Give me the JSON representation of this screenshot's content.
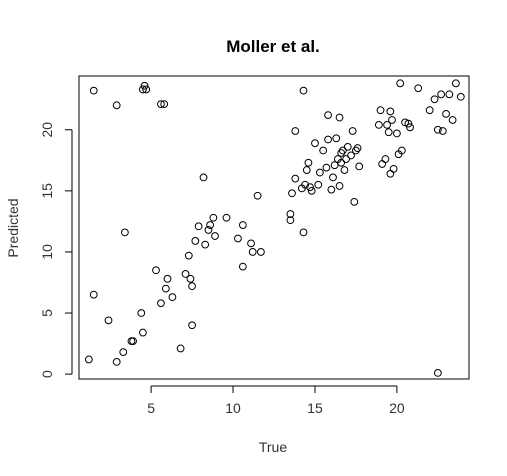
{
  "chart_data": {
    "type": "scatter",
    "title": "Moller et al.",
    "xlabel": "True",
    "ylabel": "Predicted",
    "xlim": [
      0.6,
      24.4
    ],
    "ylim": [
      -0.4,
      24.4
    ],
    "x_ticks": [
      5,
      10,
      15,
      20
    ],
    "y_ticks": [
      0,
      5,
      10,
      15,
      20
    ],
    "grid": false,
    "legend": "none",
    "marker": "open-circle",
    "colors": {
      "marker": "#000000",
      "axis": "#000000",
      "background": "#ffffff"
    },
    "points": [
      {
        "x": 1.2,
        "y": 1.2
      },
      {
        "x": 1.5,
        "y": 6.5
      },
      {
        "x": 1.5,
        "y": 23.2
      },
      {
        "x": 2.4,
        "y": 4.4
      },
      {
        "x": 2.9,
        "y": 1.0
      },
      {
        "x": 2.9,
        "y": 22.0
      },
      {
        "x": 3.3,
        "y": 1.8
      },
      {
        "x": 3.4,
        "y": 11.6
      },
      {
        "x": 3.8,
        "y": 2.7
      },
      {
        "x": 3.9,
        "y": 2.7
      },
      {
        "x": 4.4,
        "y": 5.0
      },
      {
        "x": 4.5,
        "y": 3.4
      },
      {
        "x": 4.5,
        "y": 23.3
      },
      {
        "x": 4.6,
        "y": 23.6
      },
      {
        "x": 4.7,
        "y": 23.3
      },
      {
        "x": 5.3,
        "y": 8.5
      },
      {
        "x": 5.6,
        "y": 5.8
      },
      {
        "x": 5.6,
        "y": 22.1
      },
      {
        "x": 5.8,
        "y": 22.1
      },
      {
        "x": 5.9,
        "y": 7.0
      },
      {
        "x": 6.0,
        "y": 7.8
      },
      {
        "x": 6.3,
        "y": 6.3
      },
      {
        "x": 6.8,
        "y": 2.1
      },
      {
        "x": 7.1,
        "y": 8.2
      },
      {
        "x": 7.3,
        "y": 9.7
      },
      {
        "x": 7.4,
        "y": 7.8
      },
      {
        "x": 7.5,
        "y": 4.0
      },
      {
        "x": 7.5,
        "y": 7.2
      },
      {
        "x": 7.7,
        "y": 10.9
      },
      {
        "x": 7.9,
        "y": 12.1
      },
      {
        "x": 8.2,
        "y": 16.1
      },
      {
        "x": 8.3,
        "y": 10.6
      },
      {
        "x": 8.5,
        "y": 11.8
      },
      {
        "x": 8.6,
        "y": 12.2
      },
      {
        "x": 8.8,
        "y": 12.8
      },
      {
        "x": 8.9,
        "y": 11.3
      },
      {
        "x": 9.6,
        "y": 12.8
      },
      {
        "x": 10.3,
        "y": 11.1
      },
      {
        "x": 10.6,
        "y": 8.8
      },
      {
        "x": 10.6,
        "y": 12.2
      },
      {
        "x": 11.1,
        "y": 10.7
      },
      {
        "x": 11.2,
        "y": 10.0
      },
      {
        "x": 11.5,
        "y": 14.6
      },
      {
        "x": 11.7,
        "y": 10.0
      },
      {
        "x": 13.5,
        "y": 12.6
      },
      {
        "x": 13.5,
        "y": 13.1
      },
      {
        "x": 13.6,
        "y": 14.8
      },
      {
        "x": 13.8,
        "y": 19.9
      },
      {
        "x": 13.8,
        "y": 16.0
      },
      {
        "x": 14.2,
        "y": 15.2
      },
      {
        "x": 14.3,
        "y": 11.6
      },
      {
        "x": 14.3,
        "y": 23.2
      },
      {
        "x": 14.4,
        "y": 15.5
      },
      {
        "x": 14.5,
        "y": 16.7
      },
      {
        "x": 14.6,
        "y": 17.3
      },
      {
        "x": 14.7,
        "y": 15.3
      },
      {
        "x": 14.8,
        "y": 15.0
      },
      {
        "x": 15.0,
        "y": 18.9
      },
      {
        "x": 15.2,
        "y": 15.5
      },
      {
        "x": 15.3,
        "y": 16.5
      },
      {
        "x": 15.5,
        "y": 18.3
      },
      {
        "x": 15.7,
        "y": 16.9
      },
      {
        "x": 15.8,
        "y": 19.2
      },
      {
        "x": 15.8,
        "y": 21.2
      },
      {
        "x": 16.0,
        "y": 15.1
      },
      {
        "x": 16.1,
        "y": 16.1
      },
      {
        "x": 16.2,
        "y": 17.1
      },
      {
        "x": 16.3,
        "y": 19.3
      },
      {
        "x": 16.4,
        "y": 17.6
      },
      {
        "x": 16.5,
        "y": 21.0
      },
      {
        "x": 16.5,
        "y": 15.4
      },
      {
        "x": 16.6,
        "y": 17.3
      },
      {
        "x": 16.6,
        "y": 18.1
      },
      {
        "x": 16.7,
        "y": 18.3
      },
      {
        "x": 16.8,
        "y": 16.7
      },
      {
        "x": 16.9,
        "y": 17.6
      },
      {
        "x": 17.0,
        "y": 18.6
      },
      {
        "x": 17.2,
        "y": 17.9
      },
      {
        "x": 17.3,
        "y": 19.9
      },
      {
        "x": 17.4,
        "y": 14.1
      },
      {
        "x": 17.5,
        "y": 18.3
      },
      {
        "x": 17.6,
        "y": 18.5
      },
      {
        "x": 17.7,
        "y": 17.0
      },
      {
        "x": 18.9,
        "y": 20.4
      },
      {
        "x": 19.0,
        "y": 21.6
      },
      {
        "x": 19.1,
        "y": 17.2
      },
      {
        "x": 19.3,
        "y": 17.6
      },
      {
        "x": 19.4,
        "y": 20.4
      },
      {
        "x": 19.5,
        "y": 19.8
      },
      {
        "x": 19.6,
        "y": 16.4
      },
      {
        "x": 19.6,
        "y": 21.5
      },
      {
        "x": 19.7,
        "y": 20.8
      },
      {
        "x": 19.8,
        "y": 16.8
      },
      {
        "x": 20.0,
        "y": 19.7
      },
      {
        "x": 20.1,
        "y": 18.0
      },
      {
        "x": 20.2,
        "y": 23.8
      },
      {
        "x": 20.3,
        "y": 18.3
      },
      {
        "x": 20.5,
        "y": 20.6
      },
      {
        "x": 20.7,
        "y": 20.5
      },
      {
        "x": 20.8,
        "y": 20.2
      },
      {
        "x": 21.3,
        "y": 23.4
      },
      {
        "x": 22.0,
        "y": 21.6
      },
      {
        "x": 22.3,
        "y": 22.5
      },
      {
        "x": 22.5,
        "y": 20.0
      },
      {
        "x": 22.5,
        "y": 0.1
      },
      {
        "x": 22.7,
        "y": 22.9
      },
      {
        "x": 22.8,
        "y": 19.9
      },
      {
        "x": 23.0,
        "y": 21.3
      },
      {
        "x": 23.2,
        "y": 22.9
      },
      {
        "x": 23.4,
        "y": 20.8
      },
      {
        "x": 23.6,
        "y": 23.8
      },
      {
        "x": 23.9,
        "y": 22.7
      }
    ]
  }
}
